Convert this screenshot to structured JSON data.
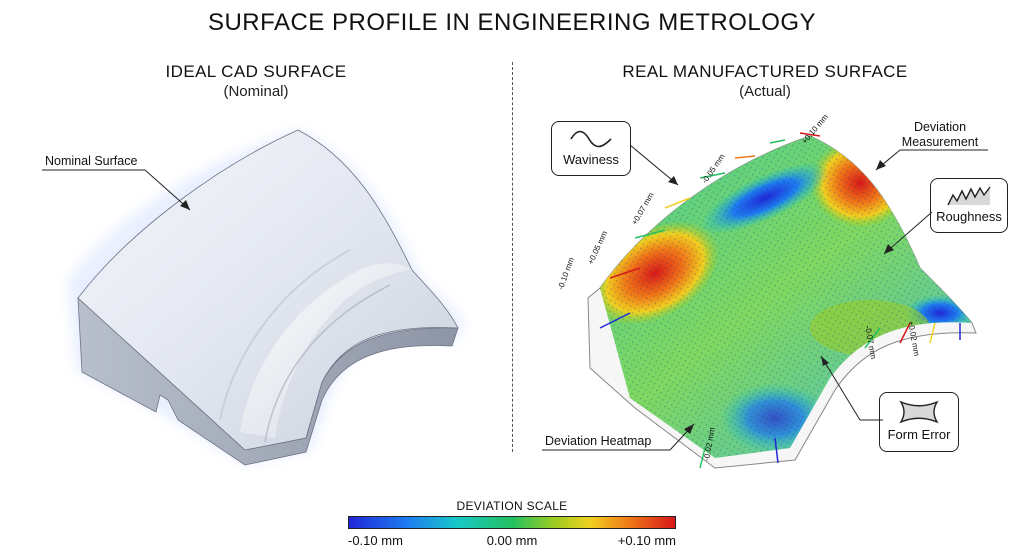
{
  "title": "SURFACE PROFILE IN ENGINEERING METROLOGY",
  "left_panel": {
    "title": "IDEAL CAD SURFACE",
    "subtitle": "(Nominal)",
    "callout": "Nominal Surface"
  },
  "right_panel": {
    "title": "REAL MANUFACTURED SURFACE",
    "subtitle": "(Actual)",
    "callouts": {
      "waviness": "Waviness",
      "deviation_measurement_line1": "Deviation",
      "deviation_measurement_line2": "Measurement",
      "roughness": "Roughness",
      "form_error": "Form Error",
      "deviation_heatmap": "Deviation Heatmap"
    },
    "arrow_labels": [
      "-0.10 mm",
      "+0.05 mm",
      "+0.07 mm",
      "-0.05 mm",
      "+0.10 mm",
      "-0.07 mm",
      "+0.02 mm",
      "-0.02 mm"
    ]
  },
  "scale": {
    "title": "DEVIATION SCALE",
    "min_label": "-0.10 mm",
    "mid_label": "0.00 mm",
    "max_label": "+0.10 mm"
  },
  "colors": {
    "low": "#2028d8",
    "mid": "#22c060",
    "high": "#d81818",
    "divider": "#555555"
  },
  "icons": [
    "wave-icon",
    "roughness-icon",
    "form-error-icon"
  ]
}
